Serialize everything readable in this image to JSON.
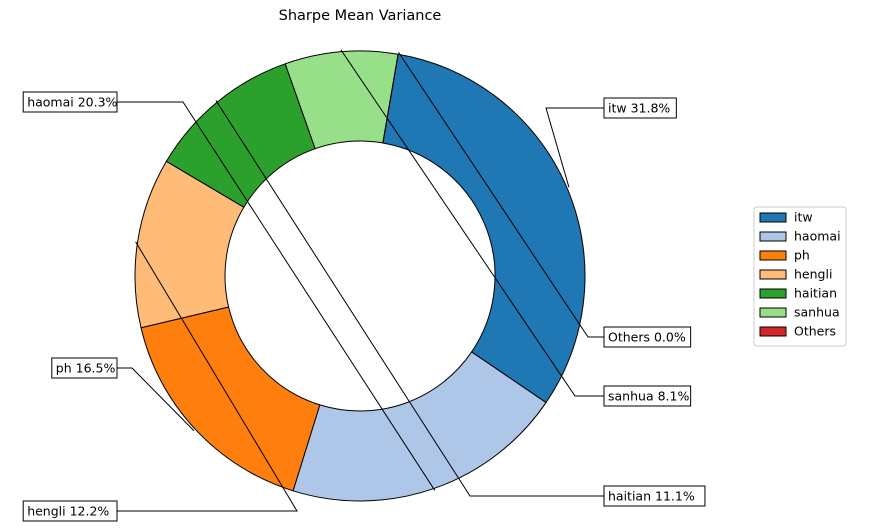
{
  "chart_data": {
    "type": "pie",
    "title": "Sharpe Mean Variance",
    "donut": true,
    "legend_placement": "right",
    "slices": [
      {
        "name": "itw",
        "value": 31.8,
        "label": "itw 31.8%",
        "color": "#1f77b4"
      },
      {
        "name": "haomai",
        "value": 20.3,
        "label": "haomai 20.3%",
        "color": "#aec7e8"
      },
      {
        "name": "ph",
        "value": 16.5,
        "label": "ph 16.5%",
        "color": "#ff7f0e"
      },
      {
        "name": "hengli",
        "value": 12.2,
        "label": "hengli 12.2%",
        "color": "#ffbb78"
      },
      {
        "name": "haitian",
        "value": 11.1,
        "label": "haitian 11.1%",
        "color": "#2ca02c"
      },
      {
        "name": "sanhua",
        "value": 8.1,
        "label": "sanhua 8.1%",
        "color": "#98df8a"
      },
      {
        "name": "Others",
        "value": 0.0,
        "label": "Others 0.0%",
        "color": "#d62728"
      }
    ]
  }
}
